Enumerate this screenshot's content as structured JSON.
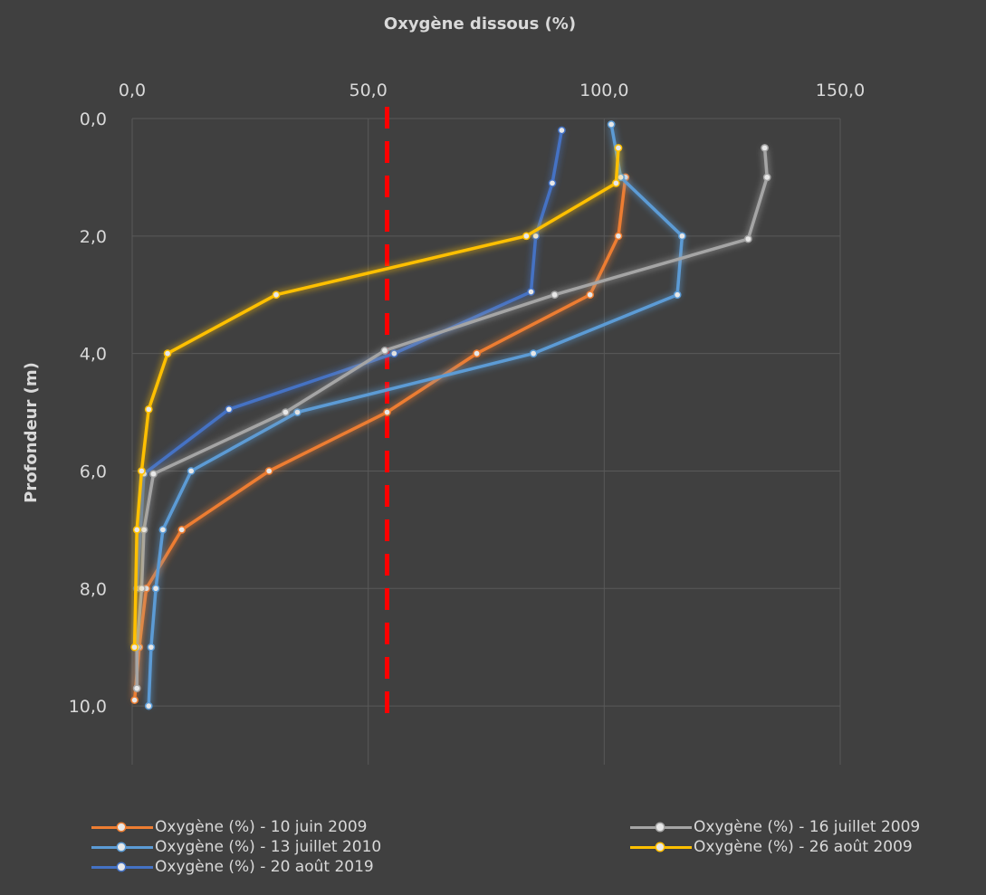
{
  "chart_data": {
    "type": "line",
    "title": "Oxygène dissous (%)",
    "xlabel": "Oxygène dissous (%)",
    "ylabel": "Profondeur (m)",
    "xlim": [
      0,
      150
    ],
    "ylim": [
      0,
      11
    ],
    "y_inverted": true,
    "x_axis_position": "top",
    "x_ticks": [
      "0,0",
      "50,0",
      "100,0",
      "150,0"
    ],
    "y_ticks": [
      "0,0",
      "2,0",
      "4,0",
      "6,0",
      "8,0",
      "10,0"
    ],
    "grid": true,
    "legend_position": "bottom",
    "reference_line": {
      "x": 54,
      "color": "#ff0000",
      "style": "dashed"
    },
    "series": [
      {
        "name": "Oxygène (%) - 10 juin 2009",
        "color": "#ed7d31",
        "points": [
          [
            104.5,
            1.0
          ],
          [
            103.0,
            2.0
          ],
          [
            97.0,
            3.0
          ],
          [
            73.0,
            4.0
          ],
          [
            54.0,
            5.0
          ],
          [
            29.0,
            6.0
          ],
          [
            10.5,
            7.0
          ],
          [
            3.0,
            8.0
          ],
          [
            1.5,
            9.0
          ],
          [
            0.5,
            9.9
          ]
        ]
      },
      {
        "name": "Oxygène (%) - 13 juillet 2010",
        "color": "#5b9bd5",
        "points": [
          [
            101.5,
            0.1
          ],
          [
            103.5,
            1.0
          ],
          [
            116.5,
            2.0
          ],
          [
            115.5,
            3.0
          ],
          [
            85.0,
            4.0
          ],
          [
            35.0,
            5.0
          ],
          [
            12.5,
            6.0
          ],
          [
            6.5,
            7.0
          ],
          [
            5.0,
            8.0
          ],
          [
            4.0,
            9.0
          ],
          [
            3.5,
            10.0
          ]
        ]
      },
      {
        "name": "Oxygène (%) - 20 août 2019",
        "color": "#4472c4",
        "points": [
          [
            91.0,
            0.2
          ],
          [
            89.0,
            1.1
          ],
          [
            85.5,
            2.0
          ],
          [
            84.5,
            2.95
          ],
          [
            55.5,
            4.0
          ],
          [
            20.5,
            4.95
          ],
          [
            2.5,
            6.05
          ],
          [
            1.0,
            8.0
          ]
        ]
      },
      {
        "name": "Oxygène (%) - 16 juillet 2009",
        "color": "#a5a5a5",
        "points": [
          [
            134.0,
            0.5
          ],
          [
            134.5,
            1.0
          ],
          [
            130.5,
            2.05
          ],
          [
            89.5,
            3.0
          ],
          [
            53.5,
            3.95
          ],
          [
            32.5,
            5.0
          ],
          [
            4.5,
            6.05
          ],
          [
            2.5,
            7.0
          ],
          [
            2.0,
            8.0
          ],
          [
            1.0,
            9.0
          ],
          [
            1.0,
            9.7
          ]
        ]
      },
      {
        "name": "Oxygène (%) - 26 août 2009",
        "color": "#ffc000",
        "points": [
          [
            103.0,
            0.5
          ],
          [
            102.5,
            1.1
          ],
          [
            83.5,
            2.0
          ],
          [
            30.5,
            3.0
          ],
          [
            7.5,
            4.0
          ],
          [
            3.5,
            4.95
          ],
          [
            2.0,
            6.0
          ],
          [
            1.0,
            7.0
          ],
          [
            0.5,
            9.0
          ]
        ]
      }
    ]
  },
  "legend": {
    "items": [
      {
        "label": "Oxygène (%) - 10 juin 2009",
        "color": "#ed7d31"
      },
      {
        "label": "Oxygène (%) - 13 juillet 2010",
        "color": "#5b9bd5"
      },
      {
        "label": "Oxygène (%) - 20 août 2019",
        "color": "#4472c4"
      },
      {
        "label": "Oxygène (%) - 16 juillet 2009",
        "color": "#a5a5a5"
      },
      {
        "label": "Oxygène (%) - 26 août 2009",
        "color": "#ffc000"
      }
    ]
  }
}
